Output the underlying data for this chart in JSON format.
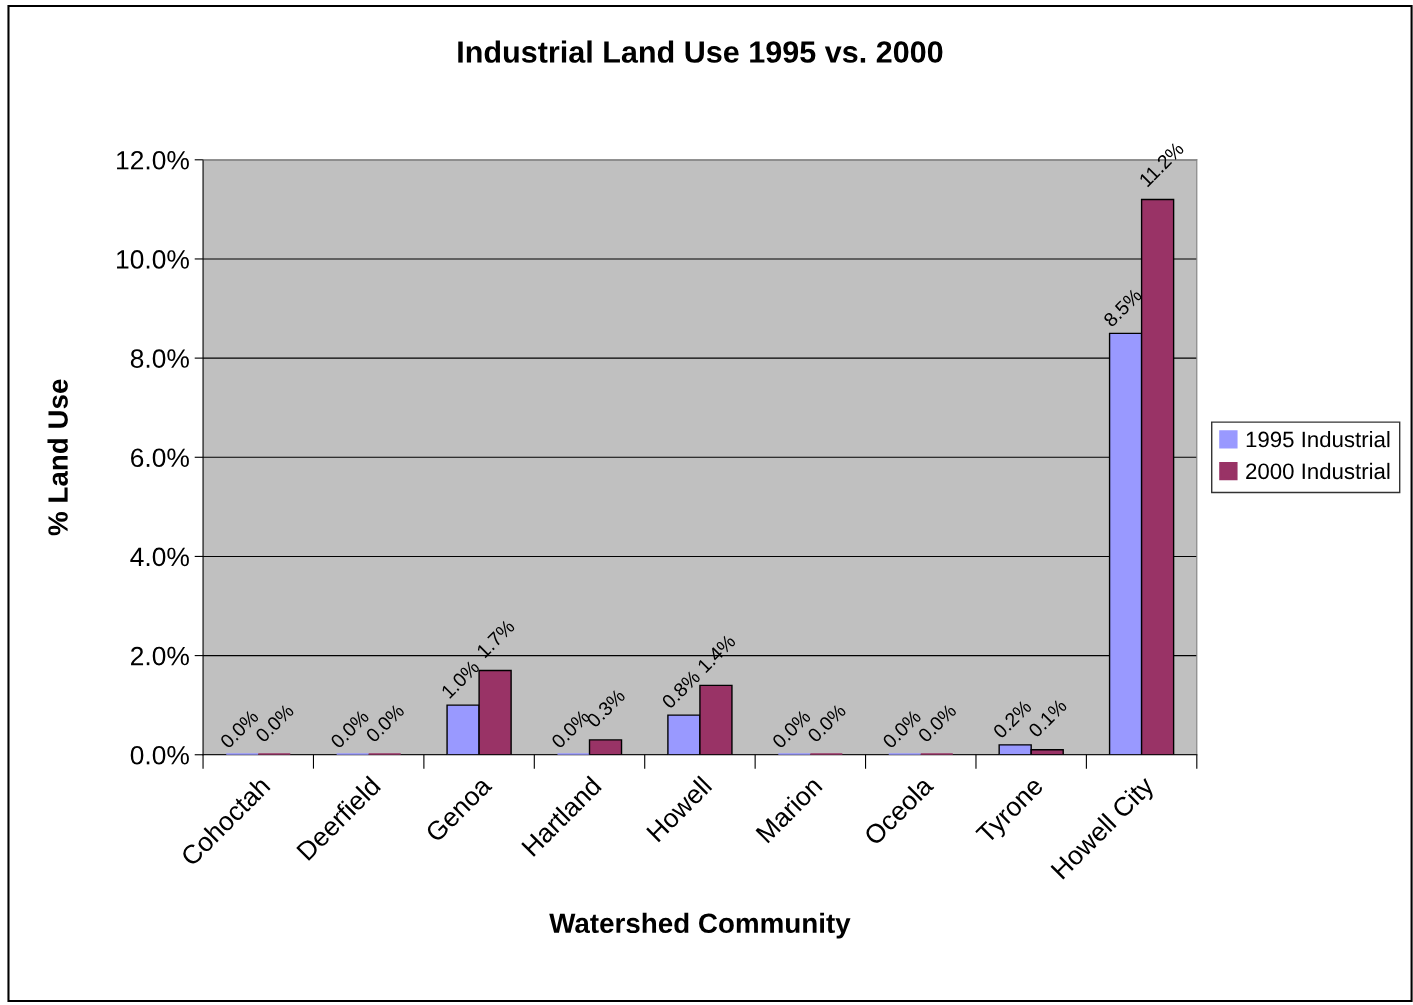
{
  "chart_data": {
    "type": "bar",
    "title": "Industrial Land Use 1995 vs. 2000",
    "xlabel": "Watershed Community",
    "ylabel": "% Land Use",
    "categories": [
      "Cohoctah",
      "Deerfield",
      "Genoa",
      "Hartland",
      "Howell",
      "Marion",
      "Oceola",
      "Tyrone",
      "Howell City"
    ],
    "series": [
      {
        "name": "1995 Industrial",
        "color": "#9999ff",
        "values": [
          0.0,
          0.0,
          1.0,
          0.0,
          0.8,
          0.0,
          0.0,
          0.2,
          8.5
        ],
        "value_labels": [
          "0.0%",
          "0.0%",
          "1.0%",
          "0.0%",
          "0.8%",
          "0.0%",
          "0.0%",
          "0.2%",
          "8.5%"
        ]
      },
      {
        "name": "2000 Industrial",
        "color": "#993366",
        "values": [
          0.0,
          0.0,
          1.7,
          0.3,
          1.4,
          0.0,
          0.0,
          0.1,
          11.2
        ],
        "value_labels": [
          "0.0%",
          "0.0%",
          "1.7%",
          "0.3%",
          "1.4%",
          "0.0%",
          "0.0%",
          "0.1%",
          "11.2%"
        ]
      }
    ],
    "ylim": [
      0,
      12
    ],
    "yticks": [
      {
        "value": 0,
        "label": "0.0%"
      },
      {
        "value": 2,
        "label": "2.0%"
      },
      {
        "value": 4,
        "label": "4.0%"
      },
      {
        "value": 6,
        "label": "6.0%"
      },
      {
        "value": 8,
        "label": "8.0%"
      },
      {
        "value": 10,
        "label": "10.0%"
      },
      {
        "value": 12,
        "label": "12.0%"
      }
    ],
    "grid": "y",
    "legend": "right"
  }
}
